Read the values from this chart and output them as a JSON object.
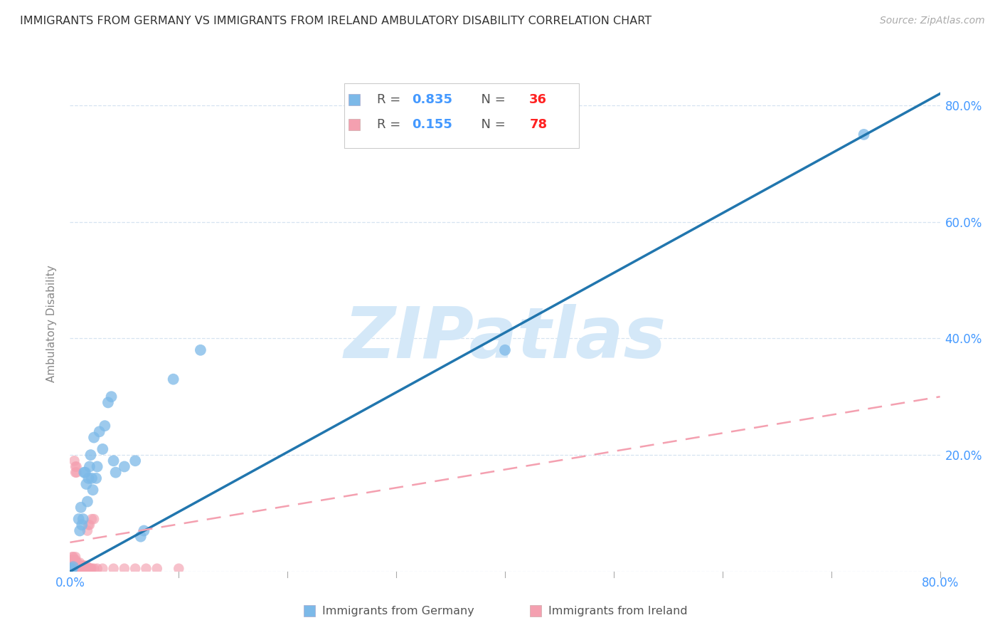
{
  "title": "IMMIGRANTS FROM GERMANY VS IMMIGRANTS FROM IRELAND AMBULATORY DISABILITY CORRELATION CHART",
  "source": "Source: ZipAtlas.com",
  "ylabel": "Ambulatory Disability",
  "x_min": 0.0,
  "x_max": 0.8,
  "y_min": 0.0,
  "y_max": 0.85,
  "x_ticks": [
    0.0,
    0.1,
    0.2,
    0.3,
    0.4,
    0.5,
    0.6,
    0.7,
    0.8
  ],
  "y_ticks": [
    0.0,
    0.2,
    0.4,
    0.6,
    0.8
  ],
  "x_tick_labels": [
    "0.0%",
    "",
    "",
    "",
    "",
    "",
    "",
    "",
    "80.0%"
  ],
  "y_tick_labels_right": [
    "",
    "20.0%",
    "40.0%",
    "60.0%",
    "80.0%"
  ],
  "germany_color": "#7cb9e8",
  "ireland_color": "#f4a0b0",
  "germany_line_color": "#2176ae",
  "ireland_line_color": "#e05070",
  "legend_color_R": "#4499ff",
  "legend_color_N": "#ff2222",
  "watermark_text": "ZIPatlas",
  "watermark_color": "#d4e8f8",
  "germany_points": [
    [
      0.001,
      0.005
    ],
    [
      0.002,
      0.005
    ],
    [
      0.003,
      0.008
    ],
    [
      0.008,
      0.09
    ],
    [
      0.009,
      0.07
    ],
    [
      0.01,
      0.11
    ],
    [
      0.011,
      0.08
    ],
    [
      0.012,
      0.09
    ],
    [
      0.013,
      0.17
    ],
    [
      0.014,
      0.17
    ],
    [
      0.015,
      0.15
    ],
    [
      0.016,
      0.12
    ],
    [
      0.017,
      0.16
    ],
    [
      0.018,
      0.18
    ],
    [
      0.019,
      0.2
    ],
    [
      0.02,
      0.16
    ],
    [
      0.021,
      0.14
    ],
    [
      0.022,
      0.23
    ],
    [
      0.024,
      0.16
    ],
    [
      0.025,
      0.18
    ],
    [
      0.027,
      0.24
    ],
    [
      0.03,
      0.21
    ],
    [
      0.032,
      0.25
    ],
    [
      0.035,
      0.29
    ],
    [
      0.038,
      0.3
    ],
    [
      0.04,
      0.19
    ],
    [
      0.042,
      0.17
    ],
    [
      0.05,
      0.18
    ],
    [
      0.06,
      0.19
    ],
    [
      0.065,
      0.06
    ],
    [
      0.068,
      0.07
    ],
    [
      0.095,
      0.33
    ],
    [
      0.12,
      0.38
    ],
    [
      0.4,
      0.38
    ],
    [
      0.73,
      0.75
    ]
  ],
  "ireland_points": [
    [
      0.0,
      0.01
    ],
    [
      0.0,
      0.005
    ],
    [
      0.0,
      0.015
    ],
    [
      0.001,
      0.005
    ],
    [
      0.001,
      0.01
    ],
    [
      0.001,
      0.02
    ],
    [
      0.001,
      0.005
    ],
    [
      0.001,
      0.005
    ],
    [
      0.002,
      0.005
    ],
    [
      0.002,
      0.005
    ],
    [
      0.002,
      0.01
    ],
    [
      0.002,
      0.01
    ],
    [
      0.002,
      0.015
    ],
    [
      0.002,
      0.02
    ],
    [
      0.002,
      0.025
    ],
    [
      0.003,
      0.005
    ],
    [
      0.003,
      0.01
    ],
    [
      0.003,
      0.015
    ],
    [
      0.003,
      0.02
    ],
    [
      0.003,
      0.025
    ],
    [
      0.004,
      0.005
    ],
    [
      0.004,
      0.01
    ],
    [
      0.004,
      0.015
    ],
    [
      0.004,
      0.02
    ],
    [
      0.004,
      0.19
    ],
    [
      0.005,
      0.005
    ],
    [
      0.005,
      0.01
    ],
    [
      0.005,
      0.015
    ],
    [
      0.005,
      0.02
    ],
    [
      0.005,
      0.025
    ],
    [
      0.005,
      0.17
    ],
    [
      0.005,
      0.18
    ],
    [
      0.006,
      0.005
    ],
    [
      0.006,
      0.01
    ],
    [
      0.006,
      0.015
    ],
    [
      0.006,
      0.17
    ],
    [
      0.006,
      0.18
    ],
    [
      0.007,
      0.005
    ],
    [
      0.007,
      0.01
    ],
    [
      0.007,
      0.015
    ],
    [
      0.008,
      0.005
    ],
    [
      0.008,
      0.01
    ],
    [
      0.009,
      0.005
    ],
    [
      0.009,
      0.01
    ],
    [
      0.009,
      0.015
    ],
    [
      0.01,
      0.005
    ],
    [
      0.01,
      0.01
    ],
    [
      0.011,
      0.005
    ],
    [
      0.011,
      0.01
    ],
    [
      0.012,
      0.005
    ],
    [
      0.012,
      0.01
    ],
    [
      0.013,
      0.005
    ],
    [
      0.013,
      0.01
    ],
    [
      0.014,
      0.005
    ],
    [
      0.015,
      0.005
    ],
    [
      0.015,
      0.01
    ],
    [
      0.016,
      0.005
    ],
    [
      0.016,
      0.07
    ],
    [
      0.017,
      0.005
    ],
    [
      0.017,
      0.08
    ],
    [
      0.018,
      0.005
    ],
    [
      0.018,
      0.08
    ],
    [
      0.019,
      0.005
    ],
    [
      0.019,
      0.005
    ],
    [
      0.02,
      0.005
    ],
    [
      0.02,
      0.09
    ],
    [
      0.022,
      0.005
    ],
    [
      0.022,
      0.09
    ],
    [
      0.025,
      0.005
    ],
    [
      0.03,
      0.005
    ],
    [
      0.04,
      0.005
    ],
    [
      0.05,
      0.005
    ],
    [
      0.06,
      0.005
    ],
    [
      0.07,
      0.005
    ],
    [
      0.08,
      0.005
    ],
    [
      0.1,
      0.005
    ],
    [
      0.015,
      0.005
    ],
    [
      0.018,
      0.005
    ],
    [
      0.003,
      0.005
    ]
  ],
  "germany_line_x": [
    0.0,
    0.8
  ],
  "germany_line_y": [
    0.0,
    0.82
  ],
  "ireland_line_x": [
    0.0,
    0.8
  ],
  "ireland_line_y": [
    0.05,
    0.3
  ]
}
